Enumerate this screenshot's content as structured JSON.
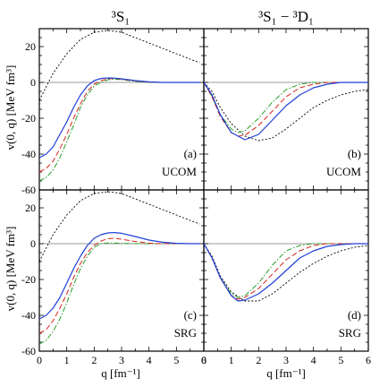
{
  "chart_data": {
    "type": "line",
    "columns": [
      {
        "title": "³S₁"
      },
      {
        "title": "³S₁ − ³D₁"
      }
    ],
    "rows": [
      {
        "method": "UCOM"
      },
      {
        "method": "SRG"
      }
    ],
    "ylabel": "v(0, q) [MeV fm³]",
    "xlabel": "q [fm⁻¹]",
    "x_ticks": [
      "0",
      "1",
      "2",
      "3",
      "4",
      "5",
      "6"
    ],
    "y_ticks": [
      "-60",
      "-40",
      "-20",
      "0",
      "20"
    ],
    "xlim": [
      0,
      6
    ],
    "ylim": [
      -60,
      30
    ],
    "series_styles": [
      {
        "color": "#000000",
        "dash": "2,2",
        "width": 0.9
      },
      {
        "color": "#2a9e2a",
        "dash": "6,2,1.5,2",
        "width": 1.0
      },
      {
        "color": "#d4241c",
        "dash": "6,3",
        "width": 1.0
      },
      {
        "color": "#1f3fd6",
        "dash": "",
        "width": 1.2
      }
    ],
    "panels": [
      {
        "label": "(a)",
        "method": "UCOM",
        "column": 0,
        "row": 0,
        "series": [
          {
            "x": [
              0,
              0.2,
              0.5,
              1.0,
              1.5,
              2.0,
              2.5,
              3.0,
              3.5,
              4.0,
              4.5,
              5.0,
              5.5,
              5.85
            ],
            "y": [
              -10,
              -4,
              5,
              16,
              24,
              28,
              29,
              28,
              25,
              22,
              19,
              16,
              13,
              11
            ]
          },
          {
            "x": [
              0,
              0.25,
              0.5,
              0.75,
              1.0,
              1.25,
              1.5,
              1.75,
              2.0,
              2.25,
              2.5,
              2.75,
              3.0,
              3.5,
              4.0,
              4.5,
              5.0,
              5.85
            ],
            "y": [
              -55,
              -53,
              -49,
              -42,
              -33,
              -24,
              -14,
              -7,
              -2,
              0,
              1.5,
              1.8,
              1.5,
              0.6,
              0.1,
              0,
              0,
              0
            ]
          },
          {
            "x": [
              0,
              0.25,
              0.5,
              0.75,
              1.0,
              1.25,
              1.5,
              1.75,
              2.0,
              2.25,
              2.5,
              2.75,
              3.0,
              3.5,
              4.0,
              4.5,
              5.0,
              5.85
            ],
            "y": [
              -50,
              -48,
              -44,
              -37,
              -29,
              -20,
              -12,
              -5,
              -1,
              1,
              2,
              2.2,
              1.8,
              0.8,
              0.2,
              0,
              0,
              0
            ]
          },
          {
            "x": [
              0,
              0.25,
              0.5,
              0.75,
              1.0,
              1.25,
              1.5,
              1.75,
              2.0,
              2.25,
              2.5,
              2.75,
              3.0,
              3.5,
              4.0,
              4.5,
              5.0,
              5.85
            ],
            "y": [
              -42,
              -40,
              -36,
              -29,
              -22,
              -14,
              -7,
              -2,
              1,
              2.2,
              2.5,
              2.4,
              2.0,
              1.0,
              0.3,
              0,
              0,
              0
            ]
          }
        ]
      },
      {
        "label": "(b)",
        "method": "UCOM",
        "column": 1,
        "row": 0,
        "series": [
          {
            "x": [
              0,
              0.3,
              0.6,
              1.0,
              1.5,
              2.0,
              2.5,
              3.0,
              3.5,
              4.0,
              4.5,
              5.0,
              5.5,
              6.0
            ],
            "y": [
              0,
              -5,
              -14,
              -23,
              -30,
              -32.5,
              -31,
              -26,
              -20,
              -14,
              -10,
              -7,
              -5,
              -4
            ]
          },
          {
            "x": [
              0,
              0.3,
              0.6,
              1.0,
              1.25,
              1.5,
              2.0,
              2.5,
              3.0,
              3.5,
              4.0,
              4.5,
              5.0,
              6.0
            ],
            "y": [
              0,
              -8,
              -18,
              -26,
              -28,
              -27,
              -20,
              -11,
              -4,
              -1,
              0,
              0,
              0,
              0
            ]
          },
          {
            "x": [
              0,
              0.3,
              0.6,
              1.0,
              1.25,
              1.5,
              2.0,
              2.5,
              3.0,
              3.5,
              4.0,
              4.5,
              5.0,
              6.0
            ],
            "y": [
              0,
              -8,
              -19,
              -28,
              -30,
              -29.5,
              -24,
              -16,
              -8,
              -3,
              -1,
              0,
              0,
              0
            ]
          },
          {
            "x": [
              0,
              0.3,
              0.6,
              1.0,
              1.5,
              2.0,
              2.5,
              3.0,
              3.5,
              4.0,
              4.5,
              5.0,
              5.5,
              6.0
            ],
            "y": [
              0,
              -7,
              -18,
              -28,
              -32,
              -29,
              -21,
              -13,
              -7,
              -3,
              -1,
              0,
              0,
              0
            ]
          }
        ]
      },
      {
        "label": "(c)",
        "method": "SRG",
        "column": 0,
        "row": 1,
        "series": [
          {
            "x": [
              0,
              0.2,
              0.5,
              1.0,
              1.5,
              2.0,
              2.5,
              3.0,
              3.5,
              4.0,
              4.5,
              5.0,
              5.5,
              5.85
            ],
            "y": [
              -10,
              -4,
              5,
              16,
              24,
              28,
              29,
              28,
              25,
              22,
              19,
              16,
              13,
              11
            ]
          },
          {
            "x": [
              0,
              0.25,
              0.5,
              0.75,
              1.0,
              1.25,
              1.5,
              1.75,
              2.0,
              2.25,
              2.5,
              3.0,
              3.5,
              4.0,
              5.0,
              5.85
            ],
            "y": [
              -56,
              -54,
              -49,
              -42,
              -33,
              -23,
              -14,
              -7,
              -2,
              0,
              0.4,
              0.2,
              0,
              0,
              0,
              0
            ]
          },
          {
            "x": [
              0,
              0.25,
              0.5,
              0.75,
              1.0,
              1.25,
              1.5,
              1.75,
              2.0,
              2.25,
              2.5,
              2.75,
              3.0,
              3.5,
              4.0,
              4.5,
              5.0,
              5.85
            ],
            "y": [
              -50,
              -48,
              -43,
              -36,
              -28,
              -19,
              -11,
              -5,
              -1,
              1.5,
              2.8,
              3,
              2.5,
              1.2,
              0.3,
              0,
              0,
              0
            ]
          },
          {
            "x": [
              0,
              0.25,
              0.5,
              0.75,
              1.0,
              1.25,
              1.5,
              1.75,
              2.0,
              2.25,
              2.5,
              2.75,
              3.0,
              3.5,
              4.0,
              4.5,
              5.0,
              5.5,
              5.85
            ],
            "y": [
              -42,
              -40,
              -36,
              -30,
              -22,
              -14,
              -7,
              -1,
              3,
              5,
              6,
              6.2,
              5.8,
              4,
              2,
              0.8,
              0.2,
              0,
              0
            ]
          }
        ]
      },
      {
        "label": "(d)",
        "method": "SRG",
        "column": 1,
        "row": 1,
        "series": [
          {
            "x": [
              0,
              0.3,
              0.6,
              1.0,
              1.5,
              2.0,
              2.5,
              3.0,
              3.5,
              4.0,
              4.5,
              5.0,
              5.5,
              6.0
            ],
            "y": [
              0,
              -7,
              -18,
              -27,
              -32,
              -32,
              -28,
              -22,
              -16,
              -11,
              -7,
              -4,
              -2,
              -1
            ]
          },
          {
            "x": [
              0,
              0.3,
              0.6,
              1.0,
              1.25,
              1.5,
              2.0,
              2.5,
              3.0,
              3.5,
              4.0,
              4.5,
              5.0,
              6.0
            ],
            "y": [
              0,
              -8,
              -19,
              -28,
              -30,
              -29,
              -22,
              -12,
              -4,
              -1,
              0,
              0,
              0,
              0
            ]
          },
          {
            "x": [
              0,
              0.3,
              0.6,
              1.0,
              1.25,
              1.5,
              2.0,
              2.5,
              3.0,
              3.5,
              4.0,
              4.5,
              5.0,
              6.0
            ],
            "y": [
              0,
              -8,
              -19,
              -29,
              -31,
              -30,
              -25,
              -17,
              -9,
              -4,
              -1,
              0,
              0,
              0
            ]
          },
          {
            "x": [
              0,
              0.3,
              0.6,
              1.0,
              1.25,
              1.5,
              2.0,
              2.5,
              3.0,
              3.5,
              4.0,
              4.5,
              5.0,
              5.5,
              6.0
            ],
            "y": [
              0,
              -8,
              -19,
              -29,
              -32,
              -31.5,
              -28,
              -22,
              -15,
              -8,
              -4,
              -1.5,
              -0.5,
              0,
              0
            ]
          }
        ]
      }
    ]
  }
}
